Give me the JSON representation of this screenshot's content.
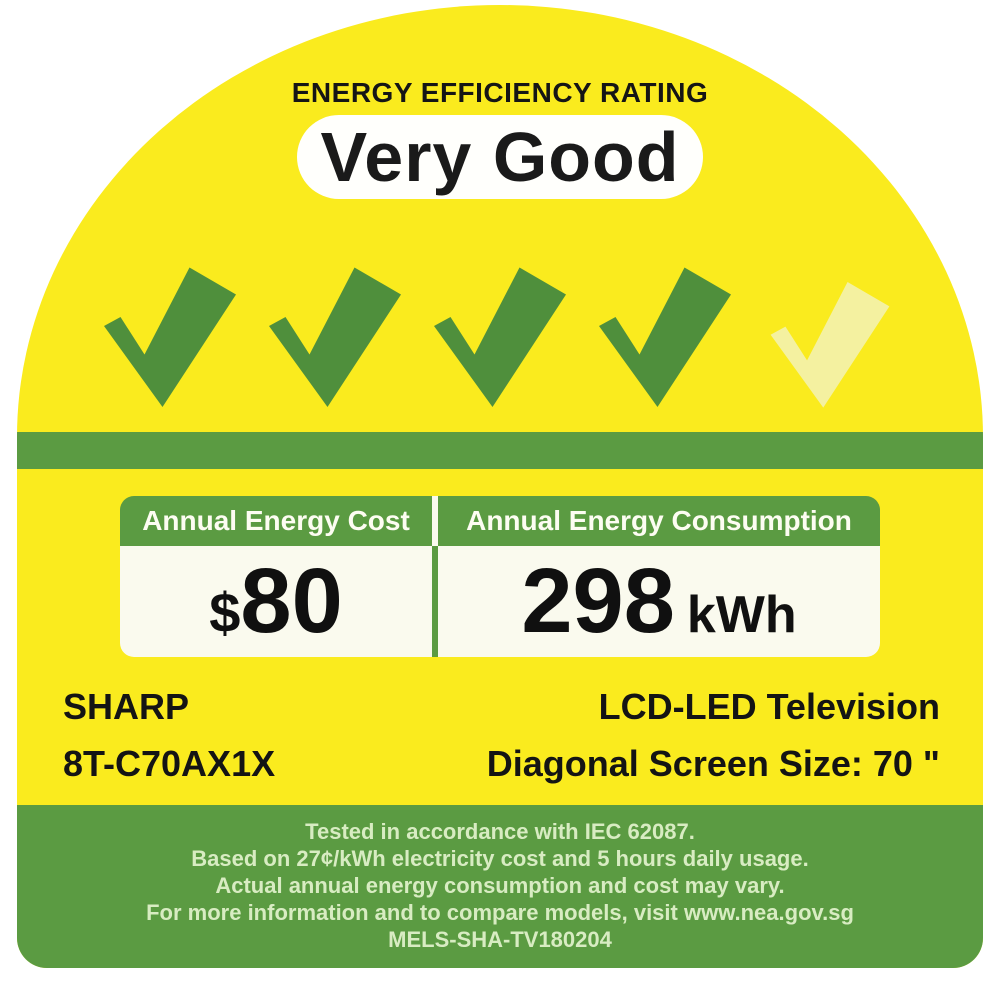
{
  "rating": {
    "title": "ENERGY EFFICIENCY RATING",
    "value": "Very Good",
    "ticks_total": 5,
    "ticks_filled": 4
  },
  "energy_panel": {
    "cost": {
      "header": "Annual Energy Cost",
      "currency_symbol": "$",
      "value": "80"
    },
    "consumption": {
      "header": "Annual Energy Consumption",
      "value": "298",
      "unit": "kWh"
    }
  },
  "product": {
    "brand": "SHARP",
    "model": "8T-C70AX1X",
    "type": "LCD-LED Television",
    "screen_size": "Diagonal Screen Size: 70 \""
  },
  "footer": {
    "lines": [
      "Tested in accordance with IEC 62087.",
      "Based on 27¢/kWh electricity cost and 5 hours daily usage.",
      "Actual annual energy consumption and cost may vary.",
      "For more information and to compare models, visit www.nea.gov.sg",
      "MELS-SHA-TV180204"
    ]
  },
  "colors": {
    "yellow": "#FAEB1E",
    "green": "#5B9B42",
    "check_green": "#4F8F3C",
    "check_pale": "#F4F1A0",
    "panel_body": "#FAFAEE",
    "footer_text": "#D8ECC2"
  }
}
